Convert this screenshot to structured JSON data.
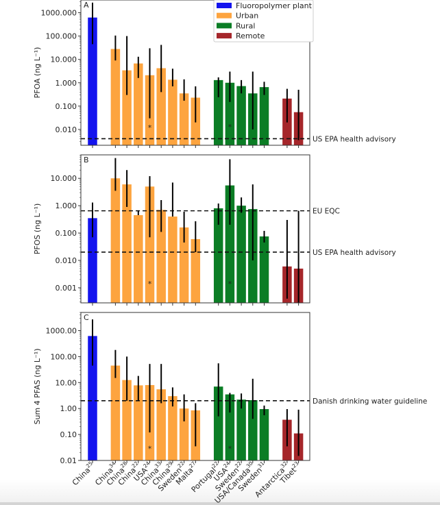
{
  "chart_data": {
    "type": "bar",
    "scale": "log",
    "categories": [
      {
        "name": "China",
        "ref": "25",
        "group": "Fluoropolymer plant"
      },
      {
        "name": "China",
        "ref": "34",
        "group": "Urban"
      },
      {
        "name": "China",
        "ref": "28",
        "group": "Urban"
      },
      {
        "name": "China",
        "ref": "22",
        "group": "Urban"
      },
      {
        "name": "USA",
        "ref": "24",
        "group": "Urban"
      },
      {
        "name": "China",
        "ref": "33",
        "group": "Urban"
      },
      {
        "name": "China",
        "ref": "29",
        "group": "Urban"
      },
      {
        "name": "Sweden",
        "ref": "22",
        "group": "Urban"
      },
      {
        "name": "Malta",
        "ref": "27",
        "group": "Urban"
      },
      {
        "name": "Portugal",
        "ref": "22",
        "group": "Rural"
      },
      {
        "name": "USA",
        "ref": "24",
        "group": "Rural"
      },
      {
        "name": "Sweden",
        "ref": "22",
        "group": "Rural"
      },
      {
        "name": "USA/Canada",
        "ref": "30",
        "group": "Rural"
      },
      {
        "name": "Sweden",
        "ref": "31",
        "group": "Rural"
      },
      {
        "name": "Antarctica",
        "ref": "32",
        "group": "Remote"
      },
      {
        "name": "Tibet",
        "ref": "23",
        "group": "Remote"
      }
    ],
    "legend": {
      "placement": "top-right",
      "entries": [
        {
          "label": "Fluoropolymer plant",
          "color": "#1414ee"
        },
        {
          "label": "Urban",
          "color": "#fda43f"
        },
        {
          "label": "Rural",
          "color": "#0b7d25"
        },
        {
          "label": "Remote",
          "color": "#a5262a"
        }
      ]
    },
    "panels": [
      {
        "id": "A",
        "ylabel": "PFOA (ng L⁻¹)",
        "ylim": [
          0.0021,
          3500
        ],
        "yticks": [
          {
            "value": 1000,
            "label": "1000.000"
          },
          {
            "value": 100,
            "label": "100.000"
          },
          {
            "value": 10,
            "label": "10.000"
          },
          {
            "value": 1,
            "label": "1.000"
          },
          {
            "value": 0.1,
            "label": "0.100"
          },
          {
            "value": 0.01,
            "label": "0.010"
          }
        ],
        "values": [
          620,
          28,
          3.4,
          6.7,
          2.1,
          4.2,
          1.35,
          0.35,
          0.23,
          1.3,
          1.0,
          0.72,
          0.35,
          0.65,
          0.21,
          0.055
        ],
        "err_high": [
          2700,
          105,
          100,
          13,
          30,
          42,
          4,
          1.4,
          0.7,
          1.7,
          3,
          1.3,
          3,
          1.1,
          0.55,
          0.5
        ],
        "err_low": [
          45,
          9,
          0.3,
          1.6,
          0.03,
          0.4,
          0.7,
          0.17,
          0.02,
          0.24,
          0.15,
          0.35,
          0.01,
          0.3,
          0.02,
          0.0035
        ],
        "asterisks": [
          {
            "index": 4,
            "value": 0.013
          },
          {
            "index": 10,
            "value": 0.014
          }
        ],
        "reference_lines": [
          {
            "value": 0.004,
            "label": "US EPA health advisory"
          }
        ]
      },
      {
        "id": "B",
        "ylabel": "PFOS (ng L⁻¹)",
        "ylim": [
          0.00028,
          72
        ],
        "yticks": [
          {
            "value": 10,
            "label": "10.000"
          },
          {
            "value": 1,
            "label": "1.000"
          },
          {
            "value": 0.1,
            "label": "0.100"
          },
          {
            "value": 0.01,
            "label": "0.010"
          },
          {
            "value": 0.001,
            "label": "0.001"
          }
        ],
        "values": [
          0.35,
          10,
          6,
          0.45,
          5,
          0.7,
          0.4,
          0.16,
          0.06,
          0.8,
          5.5,
          1.0,
          0.75,
          0.075,
          0.006,
          0.005
        ],
        "err_high": [
          1.3,
          55,
          20,
          0.65,
          12,
          1.6,
          7,
          0.6,
          0.27,
          1.2,
          50,
          2.0,
          6,
          0.12,
          0.3,
          0.65
        ],
        "err_low": [
          0.07,
          3.5,
          0.9,
          0.45,
          0.07,
          0.11,
          0.4,
          0.045,
          0.02,
          0.2,
          0.2,
          0.55,
          0.01,
          0.045,
          0.0004,
          0.0002
        ],
        "asterisks": [
          {
            "index": 4,
            "value": 0.0015
          },
          {
            "index": 10,
            "value": 0.0015
          }
        ],
        "reference_lines": [
          {
            "value": 0.65,
            "label": "EU EQC"
          },
          {
            "value": 0.02,
            "label": "US EPA health advisory"
          }
        ]
      },
      {
        "id": "C",
        "ylabel": "Sum 4 PFAS (ng L⁻¹)",
        "ylim": [
          0.01,
          5000
        ],
        "yticks": [
          {
            "value": 1000,
            "label": "1000.00"
          },
          {
            "value": 100,
            "label": "100.00"
          },
          {
            "value": 10,
            "label": "10.00"
          },
          {
            "value": 1,
            "label": "1.00"
          },
          {
            "value": 0.1,
            "label": "0.10"
          },
          {
            "value": 0.01,
            "label": "0.01"
          }
        ],
        "values": [
          620,
          45,
          12.5,
          7.8,
          8,
          5.5,
          3,
          1.0,
          0.85,
          7,
          3.5,
          2.2,
          2.1,
          0.95,
          0.37,
          0.11
        ],
        "err_high": [
          2700,
          180,
          100,
          18,
          52,
          52,
          6.5,
          3.5,
          1.6,
          55,
          4,
          3.8,
          14,
          1.3,
          0.95,
          0.9
        ],
        "err_low": [
          45,
          15,
          2.0,
          2.0,
          0.12,
          1.6,
          1.2,
          0.32,
          0.035,
          0.5,
          0.7,
          1.0,
          0.4,
          0.55,
          0.035,
          0.015
        ],
        "asterisks": [
          {
            "index": 4,
            "value": 0.031
          },
          {
            "index": 10,
            "value": 0.031
          }
        ],
        "reference_lines": [
          {
            "value": 2.0,
            "label": "Danish drinking water guideline"
          }
        ]
      }
    ]
  }
}
